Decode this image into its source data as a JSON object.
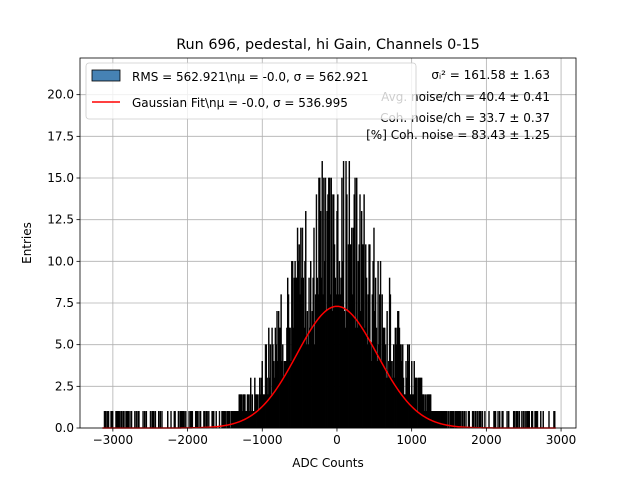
{
  "chart_data": {
    "type": "bar",
    "title": "Run 696, pedestal, hi Gain, Channels 0-15",
    "xlabel": "ADC Counts",
    "ylabel": "Entries",
    "xlim": [
      -3440,
      3200
    ],
    "ylim": [
      0,
      22.2
    ],
    "x_ticks": [
      -3000,
      -2000,
      -1000,
      0,
      1000,
      2000,
      3000
    ],
    "x_tick_labels": [
      "−3000",
      "−2000",
      "−1000",
      "0",
      "1000",
      "2000",
      "3000"
    ],
    "y_ticks": [
      0,
      2.5,
      5,
      7.5,
      10,
      12.5,
      15,
      17.5,
      20
    ],
    "y_tick_labels": [
      "0.0",
      "2.5",
      "5.0",
      "7.5",
      "10.0",
      "12.5",
      "15.0",
      "17.5",
      "20.0"
    ],
    "grid": true,
    "legend_position": "upper-left",
    "series": [
      {
        "name": "RMS = 562.921\\nμ = -0.0, σ = 562.921",
        "kind": "histogram",
        "color": "#4682b4",
        "edgecolor": "#000000",
        "x_range": [
          -3140,
          2930
        ],
        "mean": 0.0,
        "sigma": 562.921,
        "peak_entries": 16
      },
      {
        "name": "Gaussian Fit\\nμ = -0.0, σ = 536.995",
        "kind": "line",
        "color": "#ff0000",
        "x_range": [
          -3140,
          2930
        ],
        "mu": 0.0,
        "sigma": 536.995,
        "amplitude": 7.3
      }
    ],
    "annotations": [
      "σᵢ² = 161.58 ± 1.63",
      "Avg. noise/ch = 40.4 ± 0.41",
      "Coh. noise/ch = 33.7 ± 0.37",
      "[%] Coh. noise = 83.43 ± 1.25"
    ]
  }
}
